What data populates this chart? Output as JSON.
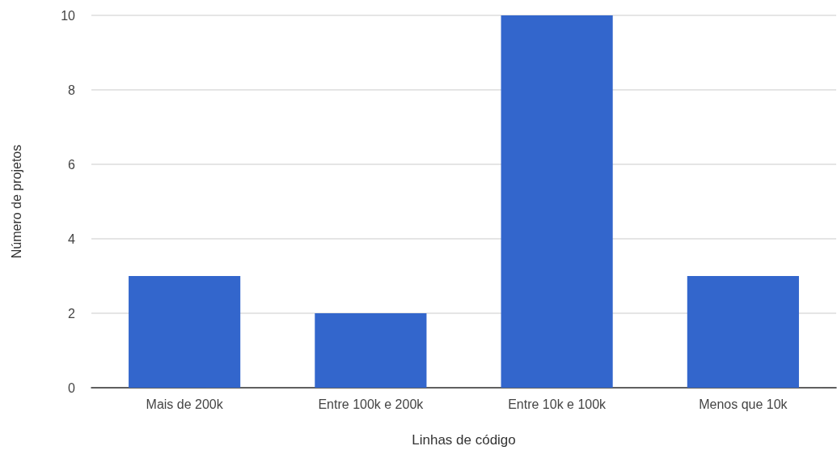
{
  "chart_data": {
    "type": "bar",
    "xlabel": "Linhas de código",
    "ylabel": "Número de projetos",
    "categories": [
      "Mais de 200k",
      "Entre 100k e 200k",
      "Entre 10k e 100k",
      "Menos que 10k"
    ],
    "values": [
      3,
      2,
      10,
      3
    ],
    "color": "#3366cc",
    "ylim": [
      0,
      10
    ],
    "yticks": [
      0,
      2,
      4,
      6,
      8,
      10
    ],
    "grid": "y"
  }
}
